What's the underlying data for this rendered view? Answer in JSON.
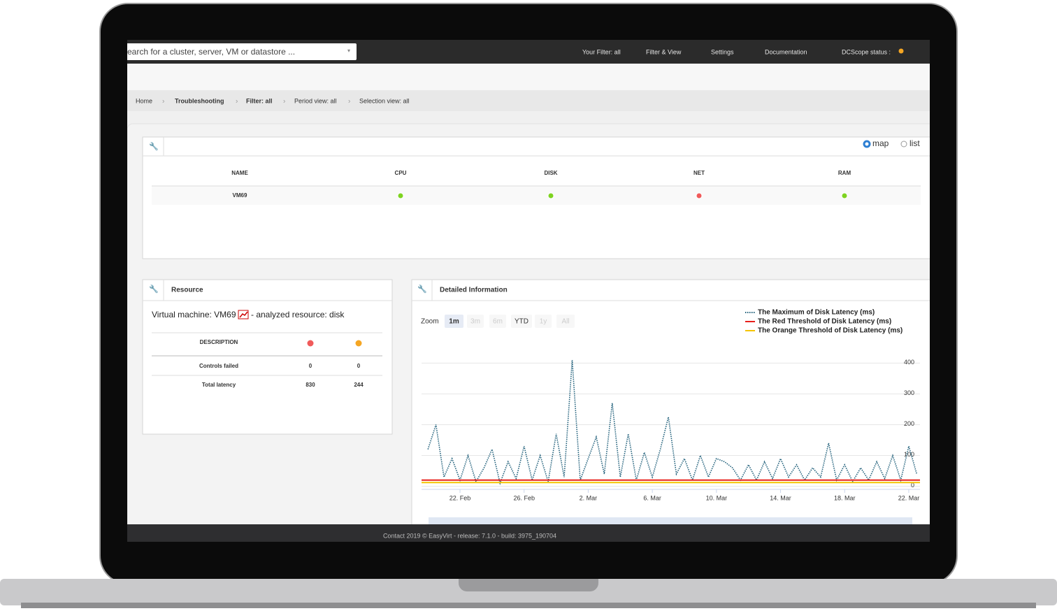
{
  "navbar": {
    "search": "earch for a cluster, server, VM or datastore ...",
    "items": [
      "Your Filter: all",
      "Filter & View",
      "Settings",
      "Documentation",
      "DCScope status :"
    ]
  },
  "breadcrumb": [
    "Home",
    "Troubleshooting",
    "Filter: all",
    "Period view: all",
    "Selection view: all"
  ],
  "map_panel": {
    "options": [
      "map",
      "list"
    ],
    "columns": [
      "NAME",
      "CPU",
      "DISK",
      "NET",
      "RAM"
    ],
    "rows": [
      {
        "name": "VM69",
        "status_colors": [
          "#7ed321",
          "#7ed321",
          "#f05a5a",
          "#7ed321"
        ]
      }
    ]
  },
  "resource_panel": {
    "title": "Resource",
    "line_prefix": "Virtual machine: VM69",
    "line_suffix": "- analyzed resource: disk",
    "columns": [
      "DESCRIPTION"
    ],
    "column_colors": [
      "#f05a5a",
      "#f5a623"
    ],
    "rows": [
      {
        "label": "Controls failed",
        "values": [
          0,
          0
        ]
      },
      {
        "label": "Total latency",
        "values": [
          830,
          244
        ]
      }
    ]
  },
  "detail_panel": {
    "title": "Detailed Information",
    "zoom_label": "Zoom",
    "zoom_buttons": [
      "1m",
      "3m",
      "6m",
      "YTD",
      "1y",
      "All"
    ]
  },
  "chart_data": {
    "type": "line",
    "x": [
      51,
      51.5,
      52,
      52.5,
      53,
      53.5,
      54,
      54.5,
      55,
      55.5,
      56,
      56.5,
      57,
      57.5,
      58,
      58.5,
      59,
      59.5,
      60,
      60.5,
      61,
      61.5,
      62,
      62.5,
      63,
      63.5,
      64,
      64.5,
      65,
      65.5,
      66,
      66.5,
      67,
      67.5,
      68,
      68.5,
      69,
      69.5,
      70,
      70.5,
      71,
      71.5,
      72,
      72.5,
      73,
      73.5,
      74,
      74.5,
      75,
      75.5,
      76,
      76.5,
      77,
      77.5,
      78,
      78.5,
      79,
      79.5,
      80,
      80.5,
      81,
      81.5
    ],
    "series": [
      {
        "name": "The Maximum of Disk Latency (ms)",
        "color": "#1f5f7a",
        "values": [
          120,
          200,
          30,
          90,
          20,
          100,
          15,
          60,
          120,
          10,
          80,
          25,
          130,
          20,
          100,
          15,
          170,
          30,
          410,
          20,
          90,
          160,
          40,
          270,
          30,
          170,
          20,
          110,
          30,
          120,
          225,
          40,
          90,
          20,
          100,
          30,
          90,
          80,
          60,
          20,
          70,
          20,
          80,
          25,
          90,
          30,
          70,
          20,
          60,
          30,
          140,
          20,
          70,
          15,
          60,
          20,
          80,
          25,
          100,
          20,
          130,
          40
        ]
      }
    ],
    "thresholds": [
      {
        "name": "The Red Threshold of Disk Latency (ms)",
        "color": "#e8201b",
        "value": 20
      },
      {
        "name": "The Orange Threshold of Disk Latency (ms)",
        "color": "#f5c400",
        "value": 12
      }
    ],
    "xlim": [
      50.6,
      81.7
    ],
    "xticks": [
      {
        "value": 53,
        "label": "22. Feb"
      },
      {
        "value": 57,
        "label": "26. Feb"
      },
      {
        "value": 61,
        "label": "2. Mar"
      },
      {
        "value": 65,
        "label": "6. Mar"
      },
      {
        "value": 69,
        "label": "10. Mar"
      },
      {
        "value": 73,
        "label": "14. Mar"
      },
      {
        "value": 77,
        "label": "18. Mar"
      },
      {
        "value": 81,
        "label": "22. Mar"
      }
    ],
    "ylim": [
      -10,
      485
    ],
    "yticks": [
      0,
      100,
      200,
      300,
      400
    ],
    "grid": true
  },
  "footer": "Contact  2019 © EasyVirt - release: 7.1.0 - build: 3975_190704"
}
